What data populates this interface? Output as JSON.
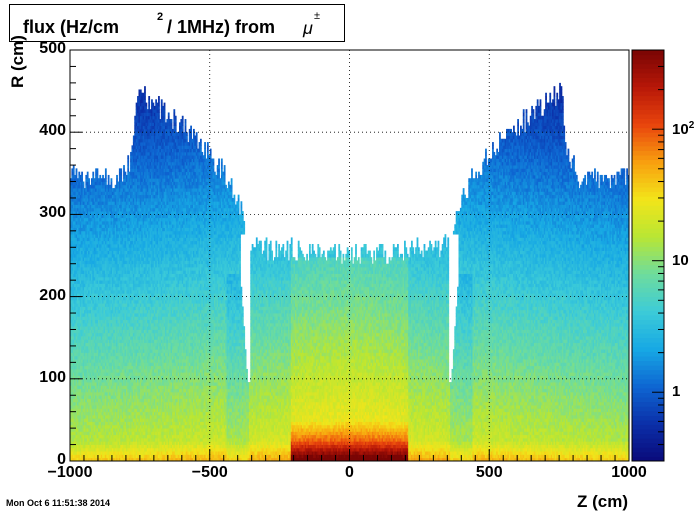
{
  "chart_data": {
    "type": "heatmap",
    "title_parts": {
      "a": "flux (Hz/cm",
      "sup": "2",
      "b": " / 1MHz) from ",
      "particle": "μ",
      "particle_sup": "±"
    },
    "xlabel": "Z (cm)",
    "ylabel": "R (cm)",
    "xlim": [
      -1000,
      1000
    ],
    "ylim": [
      0,
      500
    ],
    "x_ticks": [
      {
        "value": -1000,
        "label": "−1000"
      },
      {
        "value": -500,
        "label": "−500"
      },
      {
        "value": 0,
        "label": "0"
      },
      {
        "value": 500,
        "label": "500"
      },
      {
        "value": 1000,
        "label": "1000"
      }
    ],
    "y_ticks": [
      {
        "value": 0,
        "label": "0"
      },
      {
        "value": 100,
        "label": "100"
      },
      {
        "value": 200,
        "label": "200"
      },
      {
        "value": 300,
        "label": "300"
      },
      {
        "value": 400,
        "label": "400"
      },
      {
        "value": 500,
        "label": "500"
      }
    ],
    "z_scale": "log",
    "z_range": [
      0.3,
      400
    ],
    "z_ticks": [
      {
        "value": 1,
        "label": "1",
        "sup": ""
      },
      {
        "value": 10,
        "label": "10",
        "sup": ""
      },
      {
        "value": 100,
        "label": "10",
        "sup": "2"
      }
    ],
    "grid": true,
    "palette": [
      "#0a0a7a",
      "#0b2fa8",
      "#0e66d2",
      "#17a8e4",
      "#3ccbd8",
      "#6ddc9e",
      "#b8e634",
      "#f2e51a",
      "#f8a00f",
      "#e9450d",
      "#b81808",
      "#7a0504"
    ]
  },
  "timestamp": "Mon Oct  6 11:51:38 2014"
}
